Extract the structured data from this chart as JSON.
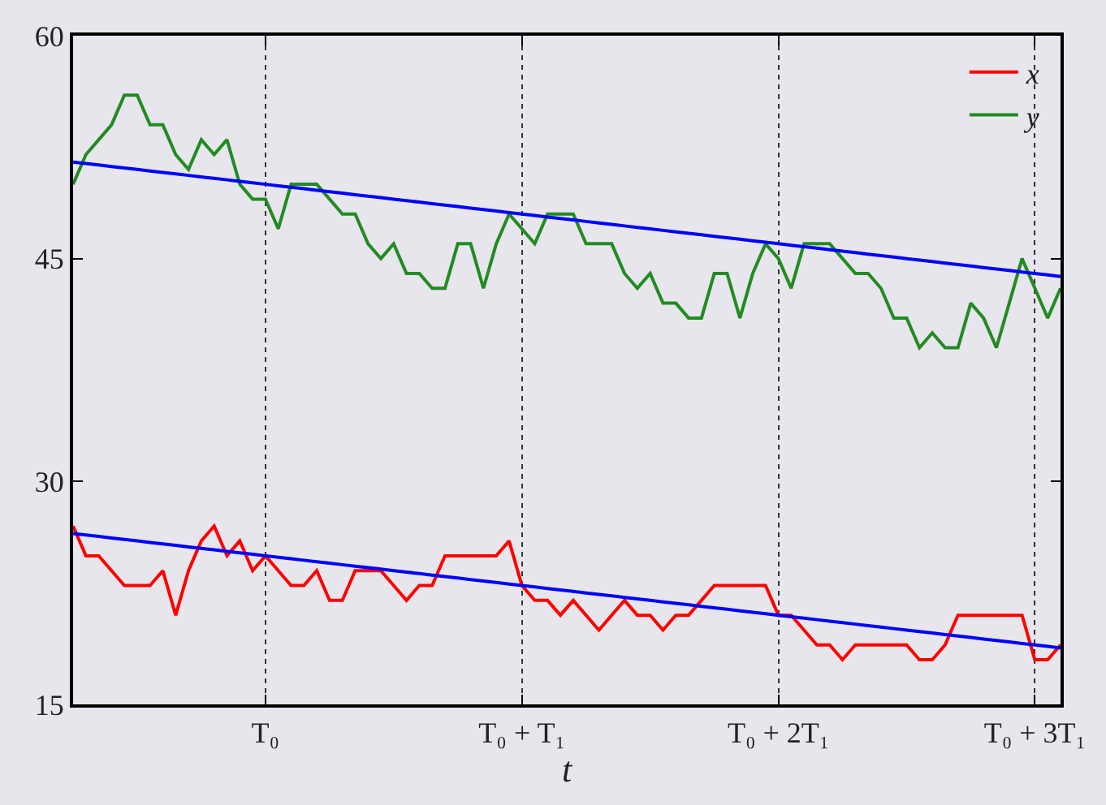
{
  "chart_data": {
    "type": "line",
    "xlabel": "t",
    "categories": [
      null,
      null,
      null,
      null,
      null,
      null,
      null,
      null,
      null,
      null,
      null,
      null,
      null,
      null,
      null,
      "T₀",
      null,
      null,
      null,
      null,
      null,
      null,
      null,
      null,
      null,
      null,
      null,
      null,
      null,
      null,
      null,
      null,
      null,
      null,
      null,
      "T₀ + T₁",
      null,
      null,
      null,
      null,
      null,
      null,
      null,
      null,
      null,
      null,
      null,
      null,
      null,
      null,
      null,
      null,
      null,
      null,
      null,
      "T₀ + 2T₁",
      null,
      null,
      null,
      null,
      null,
      null,
      null,
      null,
      null,
      null,
      null,
      null,
      null,
      null,
      null,
      null,
      null,
      null,
      null,
      "T₀ + 3T₁",
      null,
      null
    ],
    "ylim": [
      15,
      60
    ],
    "yticks": [
      15,
      30,
      45,
      60
    ],
    "grid": "x",
    "legend": "top right",
    "marker": "none",
    "line_style": "solid",
    "series": [
      {
        "name": "x",
        "color": "#ff0000",
        "values": [
          27,
          25,
          25,
          24,
          23,
          23,
          23,
          24,
          21,
          24,
          26,
          27,
          25,
          26,
          24,
          25,
          24,
          23,
          23,
          24,
          22,
          22,
          24,
          24,
          24,
          23,
          22,
          23,
          23,
          25,
          25,
          25,
          25,
          25,
          26,
          23,
          22,
          22,
          21,
          22,
          21,
          20,
          21,
          22,
          21,
          21,
          20,
          21,
          21,
          22,
          23,
          23,
          23,
          23,
          23,
          21,
          21,
          20,
          19,
          19,
          18,
          19,
          19,
          19,
          19,
          19,
          18,
          18,
          19,
          21,
          21,
          21,
          21,
          21,
          21,
          18,
          18,
          19
        ]
      },
      {
        "name": "y",
        "color": "#228b22",
        "values": [
          50,
          52,
          53,
          54,
          56,
          56,
          54,
          54,
          52,
          51,
          53,
          52,
          53,
          50,
          49,
          49,
          47,
          50,
          50,
          50,
          49,
          48,
          48,
          46,
          45,
          46,
          44,
          44,
          43,
          43,
          46,
          46,
          43,
          46,
          48,
          47,
          46,
          48,
          48,
          48,
          46,
          46,
          46,
          44,
          43,
          44,
          42,
          42,
          41,
          41,
          44,
          44,
          41,
          44,
          46,
          45,
          43,
          46,
          46,
          46,
          45,
          44,
          44,
          43,
          41,
          41,
          39,
          40,
          39,
          39,
          42,
          41,
          39,
          42,
          45,
          43,
          41,
          43
        ]
      },
      {
        "color": "#0000ff",
        "values": [
          51.5,
          51.4,
          51.3,
          51.2,
          51.1,
          51.0,
          50.9,
          50.8,
          50.7,
          50.6,
          50.5,
          50.4,
          50.3,
          50.2,
          50.1,
          50.0,
          49.9,
          49.8,
          49.7,
          49.6,
          49.5,
          49.4,
          49.3,
          49.2,
          49.1,
          49.0,
          48.9,
          48.8,
          48.7,
          48.6,
          48.5,
          48.4,
          48.3,
          48.2,
          48.1,
          48.0,
          47.9,
          47.8,
          47.7,
          47.6,
          47.5,
          47.4,
          47.3,
          47.2,
          47.1,
          47.0,
          46.9,
          46.8,
          46.7,
          46.6,
          46.5,
          46.4,
          46.3,
          46.2,
          46.1,
          46.0,
          45.9,
          45.8,
          45.7,
          45.6,
          45.5,
          45.4,
          45.3,
          45.2,
          45.1,
          45.0,
          44.9,
          44.8,
          44.7,
          44.6,
          44.5,
          44.4,
          44.3,
          44.2,
          44.1,
          44.0,
          43.9,
          43.8
        ]
      },
      {
        "color": "#0000ff",
        "values": [
          26.5,
          26.4,
          26.3,
          26.2,
          26.1,
          26.0,
          25.9,
          25.8,
          25.7,
          25.6,
          25.5,
          25.4,
          25.3,
          25.2,
          25.1,
          25.0,
          24.9,
          24.8,
          24.7,
          24.6,
          24.5,
          24.4,
          24.3,
          24.2,
          24.1,
          24.0,
          23.9,
          23.8,
          23.7,
          23.6,
          23.5,
          23.4,
          23.3,
          23.2,
          23.1,
          23.0,
          22.9,
          22.8,
          22.7,
          22.6,
          22.5,
          22.4,
          22.3,
          22.2,
          22.1,
          22.0,
          21.9,
          21.8,
          21.7,
          21.6,
          21.5,
          21.4,
          21.3,
          21.2,
          21.1,
          21.0,
          20.9,
          20.8,
          20.7,
          20.6,
          20.5,
          20.4,
          20.3,
          20.2,
          20.1,
          20.0,
          19.9,
          19.8,
          19.7,
          19.6,
          19.5,
          19.4,
          19.3,
          19.2,
          19.1,
          19.0,
          18.9,
          18.8
        ]
      }
    ]
  }
}
